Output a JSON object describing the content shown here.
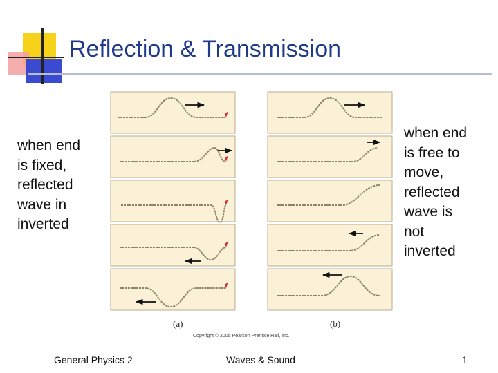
{
  "title": "Reflection & Transmission",
  "left_caption": "when end\nis fixed,\nreflected\nwave in\ninverted",
  "right_caption": "when end\nis free to\nmove,\nreflected\nwave is\nnot\ninverted",
  "figure": {
    "label_a": "(a)",
    "label_b": "(b)",
    "copyright": "Copyright © 2005 Pearson Prentice Hall, Inc."
  },
  "footer": {
    "left": "General Physics 2",
    "center": "Waves & Sound",
    "right": "1"
  },
  "colors": {
    "title": "#1f3a8a",
    "panel_bg": "#faf1d6",
    "panel_border": "#b9ad94",
    "rope": "#8a8468",
    "end_marker": "#d93030",
    "arrow": "#111111"
  }
}
